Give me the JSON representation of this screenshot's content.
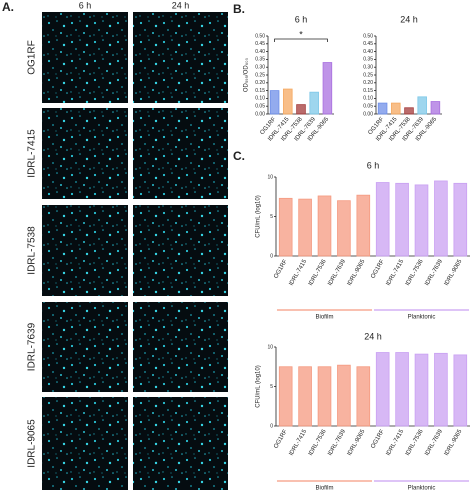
{
  "panel_a": {
    "label": "A.",
    "columns": [
      "6 h",
      "24 h"
    ],
    "rows": [
      "OG1RF",
      "IDRL-7415",
      "IDRL-7538",
      "IDRL-7639",
      "IDRL-9065"
    ]
  },
  "panel_labels": [
    "B.",
    "C."
  ],
  "chart_data": [
    {
      "type": "bar",
      "title": "6 h",
      "y_label": "OD₅₉₅/OD₆₀₀",
      "annotation": "*",
      "categories": [
        "OG1RF",
        "IDRL-7415",
        "IDRL-7538",
        "IDRL-7639",
        "IDRL-9065"
      ],
      "values": [
        0.15,
        0.16,
        0.06,
        0.14,
        0.33
      ],
      "colors": [
        "#6f8fe8",
        "#f5a860",
        "#a33a3a",
        "#7ec8e8",
        "#a970e0"
      ],
      "ylim": [
        0,
        0.5
      ],
      "yticks": [
        {
          "value": 0,
          "label": "0.00"
        },
        {
          "value": 0.05,
          "label": "0.05"
        },
        {
          "value": 0.1,
          "label": "0.10"
        },
        {
          "value": 0.15,
          "label": "0.15"
        },
        {
          "value": 0.2,
          "label": "0.20"
        },
        {
          "value": 0.25,
          "label": "0.25"
        },
        {
          "value": 0.3,
          "label": "0.30"
        },
        {
          "value": 0.35,
          "label": "0.35"
        },
        {
          "value": 0.4,
          "label": "0.40"
        },
        {
          "value": 0.45,
          "label": "0.45"
        },
        {
          "value": 0.5,
          "label": "0.50"
        }
      ]
    },
    {
      "type": "bar",
      "title": "24 h",
      "categories": [
        "OG1RF",
        "IDRL-7415",
        "IDRL-7538",
        "IDRL-7639",
        "IDRL-9065"
      ],
      "values": [
        0.07,
        0.07,
        0.04,
        0.11,
        0.08
      ],
      "colors": [
        "#6f8fe8",
        "#f5a860",
        "#a33a3a",
        "#7ec8e8",
        "#a970e0"
      ],
      "ylim": [
        0,
        0.5
      ],
      "yticks": [
        {
          "value": 0,
          "label": "0.00"
        },
        {
          "value": 0.05,
          "label": "0.05"
        },
        {
          "value": 0.1,
          "label": "0.10"
        },
        {
          "value": 0.15,
          "label": "0.15"
        },
        {
          "value": 0.2,
          "label": "0.20"
        },
        {
          "value": 0.25,
          "label": "0.25"
        },
        {
          "value": 0.3,
          "label": "0.30"
        },
        {
          "value": 0.35,
          "label": "0.35"
        },
        {
          "value": 0.4,
          "label": "0.40"
        },
        {
          "value": 0.45,
          "label": "0.45"
        },
        {
          "value": 0.5,
          "label": "0.50"
        }
      ]
    },
    {
      "type": "bar",
      "title": "6 h",
      "y_label": "CFU/mL (log10)",
      "ylim": [
        0,
        10
      ],
      "yticks": [
        0,
        5,
        10
      ],
      "series": [
        {
          "name": "Biofilm",
          "color": "#f59a80",
          "categories": [
            "OG1RF",
            "IDRL-7415",
            "IDRL-7536",
            "IDRL-7639",
            "IDRL-9065"
          ],
          "values": [
            7.3,
            7.2,
            7.6,
            7.0,
            7.7
          ]
        },
        {
          "name": "Planktonic",
          "color": "#c9a0f2",
          "categories": [
            "OG1RF",
            "IDRL-7415",
            "IDRL-7536",
            "IDRL-7639",
            "IDRL-9065"
          ],
          "values": [
            9.3,
            9.2,
            9.0,
            9.5,
            9.2
          ]
        }
      ]
    },
    {
      "type": "bar",
      "title": "24 h",
      "y_label": "CFU/mL (log10)",
      "ylim": [
        0,
        10
      ],
      "yticks": [
        0,
        5,
        10
      ],
      "series": [
        {
          "name": "Biofilm",
          "color": "#f59a80",
          "categories": [
            "OG1RF",
            "IDRL-7415",
            "IDRL-7536",
            "IDRL-7639",
            "IDRL-9065"
          ],
          "values": [
            7.5,
            7.5,
            7.5,
            7.7,
            7.5
          ]
        },
        {
          "name": "Planktonic",
          "color": "#c9a0f2",
          "categories": [
            "OG1RF",
            "IDRL-7415",
            "IDRL-7536",
            "IDRL-7639",
            "IDRL-9065"
          ],
          "values": [
            9.3,
            9.3,
            9.1,
            9.2,
            9.0
          ]
        }
      ]
    }
  ]
}
